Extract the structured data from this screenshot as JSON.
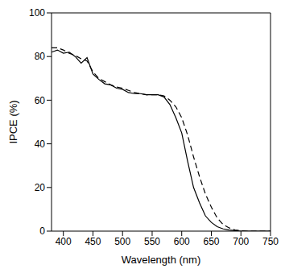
{
  "chart_data": {
    "type": "line",
    "xlabel": "Wavelength  (nm)",
    "ylabel": "IPCE  (%)",
    "x": [
      380,
      390,
      400,
      410,
      420,
      430,
      440,
      450,
      460,
      470,
      480,
      490,
      500,
      510,
      520,
      530,
      540,
      550,
      560,
      570,
      580,
      590,
      600,
      610,
      620,
      630,
      640,
      650,
      660,
      670,
      680,
      690,
      700,
      710,
      720,
      730,
      740,
      750
    ],
    "series": [
      {
        "color": "#000000",
        "line_style": "solid",
        "values": [
          82,
          83,
          81.5,
          82,
          80,
          77,
          79.5,
          72,
          69.5,
          67.5,
          67,
          65.5,
          65,
          63.5,
          63,
          63,
          62.5,
          62.5,
          62.5,
          61.5,
          58,
          52,
          45,
          32,
          20,
          13,
          7,
          4,
          2,
          1,
          0.5,
          0.2,
          0,
          0,
          0,
          0,
          0,
          0
        ]
      },
      {
        "color": "#000000",
        "line_style": "dashed",
        "values": [
          84,
          84,
          83,
          81.5,
          80.5,
          79,
          78,
          73,
          70,
          68.5,
          67,
          66,
          65.5,
          64.5,
          63.5,
          63,
          62.5,
          62.5,
          62.5,
          62,
          60,
          57,
          52,
          44,
          34,
          25,
          17,
          11,
          6,
          3,
          1.5,
          0.5,
          0.2,
          0,
          0,
          0,
          0,
          0
        ]
      }
    ],
    "xlim": [
      380,
      750
    ],
    "xticks": [
      400,
      450,
      500,
      550,
      600,
      650,
      700,
      750
    ],
    "ylim": [
      0,
      100
    ],
    "yticks": [
      0,
      20,
      40,
      60,
      80,
      100
    ],
    "grid": false
  }
}
